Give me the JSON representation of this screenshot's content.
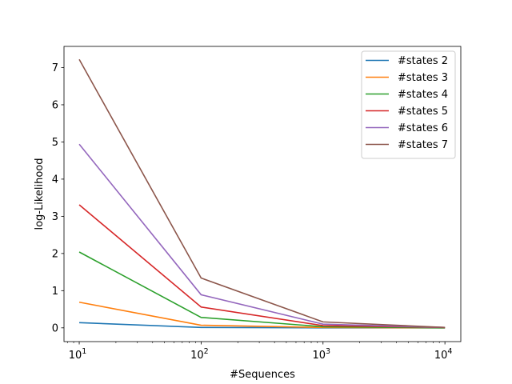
{
  "chart_data": {
    "type": "line",
    "xscale": "log",
    "xlabel": "#Sequences",
    "ylabel": "log-Likelihood",
    "xlim": [
      7.5,
      13500
    ],
    "ylim": [
      -0.37,
      7.57
    ],
    "x": [
      10,
      100,
      1000,
      10000
    ],
    "x_ticks": [
      10,
      100,
      1000,
      10000
    ],
    "x_tick_labels": [
      {
        "base": "10",
        "exp": "1"
      },
      {
        "base": "10",
        "exp": "2"
      },
      {
        "base": "10",
        "exp": "3"
      },
      {
        "base": "10",
        "exp": "4"
      }
    ],
    "y_ticks": [
      0,
      1,
      2,
      3,
      4,
      5,
      6,
      7
    ],
    "y_tick_labels": [
      "0",
      "1",
      "2",
      "3",
      "4",
      "5",
      "6",
      "7"
    ],
    "grid": false,
    "legend_position": "top-right",
    "series": [
      {
        "name": "#states 2",
        "color": "#1f77b4",
        "values": [
          0.14,
          0.01,
          0.0,
          0.0
        ]
      },
      {
        "name": "#states 3",
        "color": "#ff7f0e",
        "values": [
          0.69,
          0.07,
          0.01,
          0.0
        ]
      },
      {
        "name": "#states 4",
        "color": "#2ca02c",
        "values": [
          2.04,
          0.28,
          0.03,
          0.0
        ]
      },
      {
        "name": "#states 5",
        "color": "#d62728",
        "values": [
          3.31,
          0.56,
          0.06,
          0.01
        ]
      },
      {
        "name": "#states 6",
        "color": "#9467bd",
        "values": [
          4.94,
          0.89,
          0.1,
          0.01
        ]
      },
      {
        "name": "#states 7",
        "color": "#8c564b",
        "values": [
          7.22,
          1.34,
          0.16,
          0.01
        ]
      }
    ]
  }
}
